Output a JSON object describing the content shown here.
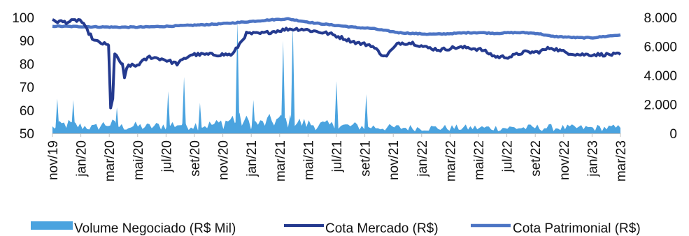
{
  "chart_data": {
    "type": "line",
    "x_tick_labels": [
      "nov/19",
      "jan/20",
      "mar/20",
      "mai/20",
      "jul/20",
      "set/20",
      "nov/20",
      "jan/21",
      "mar/21",
      "mai/21",
      "jul/21",
      "set/21",
      "nov/21",
      "jan/22",
      "mar/22",
      "mai/22",
      "jul/22",
      "set/22",
      "nov/22",
      "jan/23",
      "mar/23"
    ],
    "y_left": {
      "ticks": [
        "50",
        "60",
        "70",
        "80",
        "90",
        "100"
      ],
      "range": [
        50,
        100
      ]
    },
    "y_right": {
      "ticks": [
        "0",
        "2.000",
        "4.000",
        "6.000",
        "8.000"
      ],
      "range": [
        0,
        8000
      ]
    },
    "legend_position": "bottom",
    "colors": {
      "volume": "#4aa3df",
      "cota_mercado": "#243a8f",
      "cota_patrimonial": "#4c74c4"
    },
    "series": [
      {
        "name": "Volume Negociado (R$ Mil)",
        "kind": "area",
        "axis": "right",
        "months": [
          "nov/19",
          "dez/19",
          "jan/20",
          "fev/20",
          "mar/20",
          "abr/20",
          "mai/20",
          "jun/20",
          "jul/20",
          "ago/20",
          "set/20",
          "out/20",
          "nov/20",
          "dez/20",
          "jan/21",
          "fev/21",
          "mar/21",
          "abr/21",
          "mai/21",
          "jun/21",
          "jul/21",
          "ago/21",
          "set/21",
          "out/21",
          "nov/21",
          "dez/21",
          "jan/22",
          "fev/22",
          "mar/22",
          "abr/22",
          "mai/22",
          "jun/22",
          "jul/22",
          "ago/22",
          "set/22",
          "out/22",
          "nov/22",
          "dez/22",
          "jan/23",
          "fev/23",
          "mar/23",
          "abr/23"
        ],
        "values": [
          400,
          650,
          500,
          400,
          700,
          450,
          500,
          450,
          550,
          650,
          600,
          550,
          650,
          1000,
          800,
          650,
          900,
          850,
          700,
          600,
          550,
          500,
          500,
          450,
          400,
          400,
          380,
          380,
          380,
          380,
          380,
          380,
          380,
          380,
          380,
          400,
          400,
          380,
          380,
          380,
          380,
          380
        ],
        "spikes": [
          {
            "month": "nov/19",
            "value": 2400
          },
          {
            "month": "dez/19",
            "value": 2300
          },
          {
            "month": "mar/20",
            "value": 1800
          },
          {
            "month": "jul/20",
            "value": 2900
          },
          {
            "month": "ago/20",
            "value": 3900
          },
          {
            "month": "set/20",
            "value": 2100
          },
          {
            "month": "dez/20",
            "value": 7800
          },
          {
            "month": "jan/21",
            "value": 2300
          },
          {
            "month": "mar/21",
            "value": 6400
          },
          {
            "month": "abr/21",
            "value": 7500
          },
          {
            "month": "jul/21",
            "value": 3600
          },
          {
            "month": "set/21",
            "value": 2700
          }
        ]
      },
      {
        "name": "Cota Mercado (R$)",
        "kind": "line",
        "axis": "left",
        "months": [
          "nov/19",
          "dez/19",
          "jan/20",
          "fev/20",
          "mar/20",
          "abr/20",
          "mai/20",
          "jun/20",
          "jul/20",
          "ago/20",
          "set/20",
          "out/20",
          "nov/20",
          "dez/20",
          "jan/21",
          "fev/21",
          "mar/21",
          "abr/21",
          "mai/21",
          "jun/21",
          "jul/21",
          "ago/21",
          "set/21",
          "out/21",
          "nov/21",
          "dez/21",
          "jan/22",
          "fev/22",
          "mar/22",
          "abr/22",
          "mai/22",
          "jun/22",
          "jul/22",
          "ago/22",
          "set/22",
          "out/22",
          "nov/22",
          "dez/22",
          "jan/23",
          "fev/23",
          "mar/23",
          "abr/23"
        ],
        "values": [
          98.5,
          98,
          99,
          90,
          88,
          80,
          79,
          83,
          82,
          80,
          84,
          84,
          84,
          84,
          93,
          93,
          94,
          95,
          95,
          94,
          93,
          91,
          89,
          88,
          83,
          89,
          89,
          87,
          86,
          87,
          87,
          86,
          83,
          83,
          85,
          85,
          87,
          85,
          84,
          84,
          84,
          84
        ],
        "events": [
          {
            "month": "mar/20",
            "min": 61
          },
          {
            "month": "abr/20",
            "min": 74
          }
        ]
      },
      {
        "name": "Cota Patrimonial (R$)",
        "kind": "line",
        "axis": "right",
        "months": [
          "nov/19",
          "dez/19",
          "jan/20",
          "fev/20",
          "mar/20",
          "abr/20",
          "mai/20",
          "jun/20",
          "jul/20",
          "ago/20",
          "set/20",
          "out/20",
          "nov/20",
          "dez/20",
          "jan/21",
          "fev/21",
          "mar/21",
          "abr/21",
          "mai/21",
          "jun/21",
          "jul/21",
          "ago/21",
          "set/21",
          "out/21",
          "nov/21",
          "dez/21",
          "jan/22",
          "fev/22",
          "mar/22",
          "abr/22",
          "mai/22",
          "jun/22",
          "jul/22",
          "ago/22",
          "set/22",
          "out/22",
          "nov/22",
          "dez/22",
          "jan/23",
          "fev/23",
          "mar/23",
          "abr/23"
        ],
        "values": [
          7400,
          7380,
          7370,
          7350,
          7340,
          7330,
          7330,
          7350,
          7380,
          7420,
          7460,
          7500,
          7550,
          7620,
          7700,
          7780,
          7850,
          7900,
          7750,
          7600,
          7500,
          7400,
          7300,
          7250,
          7100,
          6950,
          6900,
          6850,
          6850,
          6900,
          6950,
          6950,
          6900,
          6950,
          6950,
          6900,
          6700,
          6650,
          6600,
          6600,
          6700,
          6800
        ]
      }
    ]
  }
}
